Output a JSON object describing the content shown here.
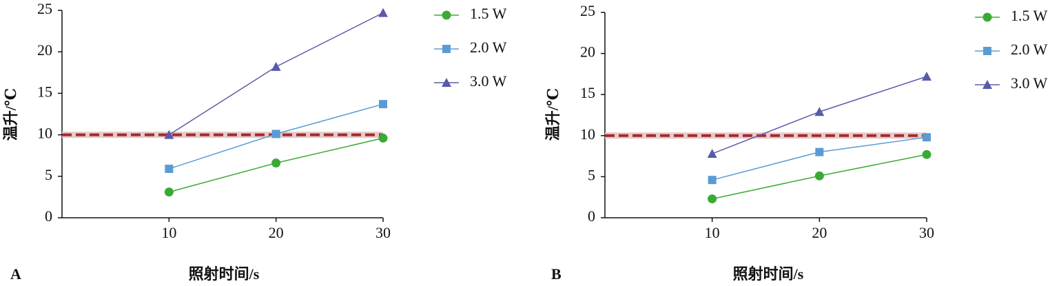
{
  "chart_data": [
    {
      "type": "line",
      "panel": "A",
      "xlabel": "照射时间/s",
      "ylabel": "温升/℃",
      "x": [
        10,
        20,
        30
      ],
      "xlim": [
        0,
        30
      ],
      "xticks": [
        10,
        20,
        30
      ],
      "ylim": [
        0,
        25
      ],
      "yticks": [
        0,
        5,
        10,
        15,
        20,
        25
      ],
      "threshold": 10,
      "threshold_color": "#a52a2a",
      "series": [
        {
          "name": "1.5 W",
          "color": "#3aaa35",
          "marker": "circle",
          "values": [
            3.1,
            6.6,
            9.6
          ]
        },
        {
          "name": "2.0 W",
          "color": "#5b9bd5",
          "marker": "square",
          "values": [
            5.9,
            10.1,
            13.7
          ]
        },
        {
          "name": "3.0 W",
          "color": "#5a5aaa",
          "marker": "triangle",
          "values": [
            10.0,
            18.2,
            24.7
          ]
        }
      ]
    },
    {
      "type": "line",
      "panel": "B",
      "xlabel": "照射时间/s",
      "ylabel": "温升/℃",
      "x": [
        10,
        20,
        30
      ],
      "xlim": [
        0,
        30
      ],
      "xticks": [
        10,
        20,
        30
      ],
      "ylim": [
        0,
        25
      ],
      "yticks": [
        0,
        5,
        10,
        15,
        20,
        25
      ],
      "threshold": 10,
      "threshold_color": "#a52a2a",
      "series": [
        {
          "name": "1.5 W",
          "color": "#3aaa35",
          "marker": "circle",
          "values": [
            2.3,
            5.1,
            7.7
          ]
        },
        {
          "name": "2.0 W",
          "color": "#5b9bd5",
          "marker": "square",
          "values": [
            4.6,
            8.0,
            9.8
          ]
        },
        {
          "name": "3.0 W",
          "color": "#5a5aaa",
          "marker": "triangle",
          "values": [
            7.8,
            12.9,
            17.2
          ]
        }
      ]
    }
  ]
}
